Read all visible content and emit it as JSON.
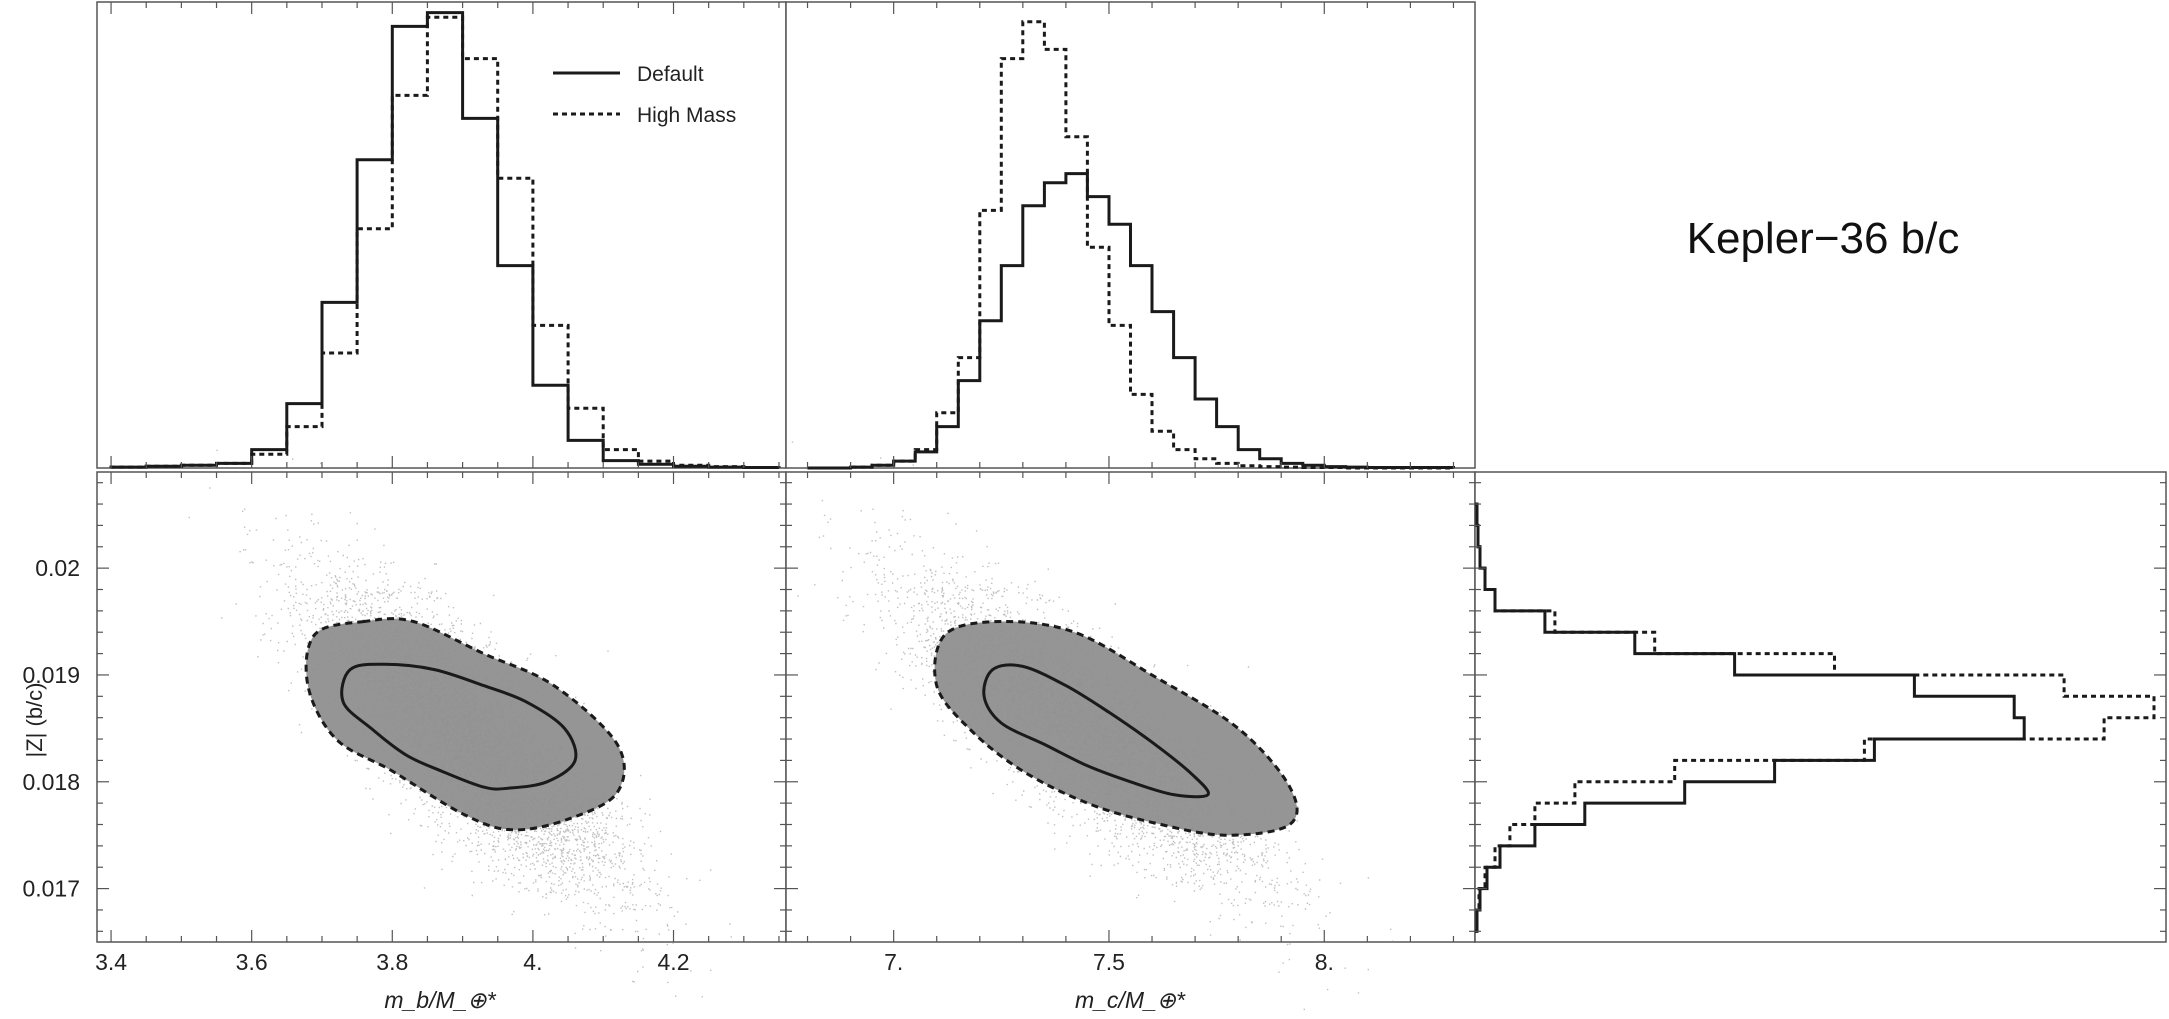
{
  "title": "Kepler−36 b/c",
  "colors": {
    "scatter": "#8c8c8c",
    "core": "#8f8f8f",
    "line": "#1a1a1a",
    "frame": "#555555"
  },
  "legend": [
    {
      "label": "Default",
      "style": "solid"
    },
    {
      "label": "High Mass",
      "style": "dotted"
    }
  ],
  "chart_data": [
    {
      "type": "bar",
      "panel": "histogram-mb",
      "xlim": [
        3.38,
        4.36
      ],
      "bin_edges": [
        3.4,
        3.45,
        3.5,
        3.55,
        3.6,
        3.65,
        3.7,
        3.75,
        3.8,
        3.85,
        3.9,
        3.95,
        4.0,
        4.05,
        4.1,
        4.15,
        4.2,
        4.25,
        4.3,
        4.35
      ],
      "series": [
        {
          "name": "Default",
          "values": [
            0.002,
            0.004,
            0.006,
            0.01,
            0.04,
            0.14,
            0.36,
            0.67,
            0.96,
            0.99,
            0.76,
            0.44,
            0.18,
            0.06,
            0.016,
            0.008,
            0.004,
            0.002,
            0.001
          ]
        },
        {
          "name": "High Mass",
          "values": [
            0.002,
            0.004,
            0.006,
            0.01,
            0.03,
            0.09,
            0.25,
            0.52,
            0.81,
            0.98,
            0.89,
            0.63,
            0.31,
            0.13,
            0.04,
            0.015,
            0.006,
            0.003,
            0.001
          ]
        }
      ]
    },
    {
      "type": "bar",
      "panel": "histogram-mc",
      "xlim": [
        6.75,
        8.35
      ],
      "bin_edges": [
        6.8,
        6.85,
        6.9,
        6.95,
        7.0,
        7.05,
        7.1,
        7.15,
        7.2,
        7.25,
        7.3,
        7.35,
        7.4,
        7.45,
        7.5,
        7.55,
        7.6,
        7.65,
        7.7,
        7.75,
        7.8,
        7.85,
        7.9,
        7.95,
        8.0,
        8.05,
        8.1,
        8.15,
        8.2,
        8.25,
        8.3
      ],
      "series": [
        {
          "name": "Default",
          "values": [
            0,
            0,
            0.002,
            0.006,
            0.015,
            0.035,
            0.09,
            0.19,
            0.32,
            0.44,
            0.57,
            0.62,
            0.64,
            0.59,
            0.53,
            0.44,
            0.34,
            0.24,
            0.15,
            0.09,
            0.04,
            0.02,
            0.01,
            0.006,
            0.003,
            0.002,
            0.001,
            0.001,
            0.001,
            0.001
          ]
        },
        {
          "name": "High Mass",
          "values": [
            0,
            0,
            0.002,
            0.006,
            0.015,
            0.04,
            0.12,
            0.24,
            0.56,
            0.89,
            0.97,
            0.91,
            0.72,
            0.48,
            0.31,
            0.16,
            0.08,
            0.04,
            0.02,
            0.01,
            0.005,
            0.003,
            0.002,
            0.001,
            0.001,
            0,
            0,
            0,
            0,
            0
          ]
        }
      ]
    },
    {
      "type": "bar",
      "panel": "histogram-z",
      "orientation": "horizontal",
      "ylim": [
        0.0165,
        0.0209
      ],
      "bin_edges": [
        0.0166,
        0.0168,
        0.017,
        0.0172,
        0.0174,
        0.0176,
        0.0178,
        0.018,
        0.0182,
        0.0184,
        0.0186,
        0.0188,
        0.019,
        0.0192,
        0.0194,
        0.0196,
        0.0198,
        0.02,
        0.0202,
        0.0204,
        0.0206
      ],
      "series": [
        {
          "name": "Default",
          "values": [
            0.002,
            0.005,
            0.012,
            0.025,
            0.06,
            0.11,
            0.21,
            0.3,
            0.4,
            0.55,
            0.54,
            0.44,
            0.26,
            0.16,
            0.07,
            0.02,
            0.01,
            0.005,
            0.003,
            0.002
          ]
        },
        {
          "name": "High Mass",
          "values": [
            0.002,
            0.004,
            0.01,
            0.02,
            0.035,
            0.06,
            0.1,
            0.2,
            0.39,
            0.63,
            0.68,
            0.59,
            0.36,
            0.18,
            0.08,
            0.02,
            0.01,
            0.005,
            0.003,
            0.002
          ]
        }
      ]
    },
    {
      "type": "scatter",
      "panel": "scatter-mb-z",
      "xlabel": "m_b/M_⊕*",
      "ylabel": "|Z| (b/c)",
      "xlim": [
        3.38,
        4.36
      ],
      "ylim": [
        0.0165,
        0.0209
      ],
      "xticks": [
        "3.4",
        "3.6",
        "3.8",
        "4.",
        "4.2"
      ],
      "yticks": [
        "0.017",
        "0.018",
        "0.019",
        "0.02"
      ],
      "center": [
        3.905,
        0.01842
      ],
      "contour_inner": [
        [
          3.79,
          0.0191
        ],
        [
          3.74,
          0.01905
        ],
        [
          3.73,
          0.01875
        ],
        [
          3.77,
          0.0185
        ],
        [
          3.82,
          0.01825
        ],
        [
          3.87,
          0.0181
        ],
        [
          3.93,
          0.01795
        ],
        [
          3.965,
          0.01794
        ],
        [
          4.02,
          0.018
        ],
        [
          4.06,
          0.0182
        ],
        [
          4.045,
          0.0185
        ],
        [
          3.99,
          0.01875
        ],
        [
          3.93,
          0.0189
        ],
        [
          3.86,
          0.01905
        ]
      ],
      "contour_outer": [
        [
          3.76,
          0.0195
        ],
        [
          3.69,
          0.01938
        ],
        [
          3.68,
          0.0189
        ],
        [
          3.72,
          0.0184
        ],
        [
          3.8,
          0.0181
        ],
        [
          3.9,
          0.0177
        ],
        [
          3.97,
          0.01755
        ],
        [
          4.05,
          0.01765
        ],
        [
          4.12,
          0.0179
        ],
        [
          4.12,
          0.01835
        ],
        [
          4.03,
          0.0189
        ],
        [
          3.93,
          0.0192
        ],
        [
          3.83,
          0.0195
        ]
      ]
    },
    {
      "type": "scatter",
      "panel": "scatter-mc-z",
      "xlabel": "m_c/M_⊕*",
      "xlim": [
        6.75,
        8.35
      ],
      "ylim": [
        0.0165,
        0.0209
      ],
      "xticks": [
        "7.",
        "7.5",
        "8."
      ],
      "center": [
        7.44,
        0.01848
      ],
      "contour_inner": [
        [
          7.3,
          0.01908
        ],
        [
          7.23,
          0.01905
        ],
        [
          7.21,
          0.0188
        ],
        [
          7.25,
          0.01855
        ],
        [
          7.35,
          0.01835
        ],
        [
          7.45,
          0.01815
        ],
        [
          7.55,
          0.018
        ],
        [
          7.65,
          0.01788
        ],
        [
          7.73,
          0.01788
        ],
        [
          7.69,
          0.01808
        ],
        [
          7.6,
          0.01837
        ],
        [
          7.5,
          0.01865
        ],
        [
          7.4,
          0.0189
        ]
      ],
      "contour_outer": [
        [
          7.25,
          0.0195
        ],
        [
          7.12,
          0.01938
        ],
        [
          7.1,
          0.0189
        ],
        [
          7.18,
          0.01848
        ],
        [
          7.3,
          0.0181
        ],
        [
          7.45,
          0.0178
        ],
        [
          7.6,
          0.01762
        ],
        [
          7.77,
          0.0175
        ],
        [
          7.92,
          0.0176
        ],
        [
          7.92,
          0.01795
        ],
        [
          7.8,
          0.0185
        ],
        [
          7.6,
          0.019
        ],
        [
          7.42,
          0.0194
        ]
      ]
    }
  ]
}
